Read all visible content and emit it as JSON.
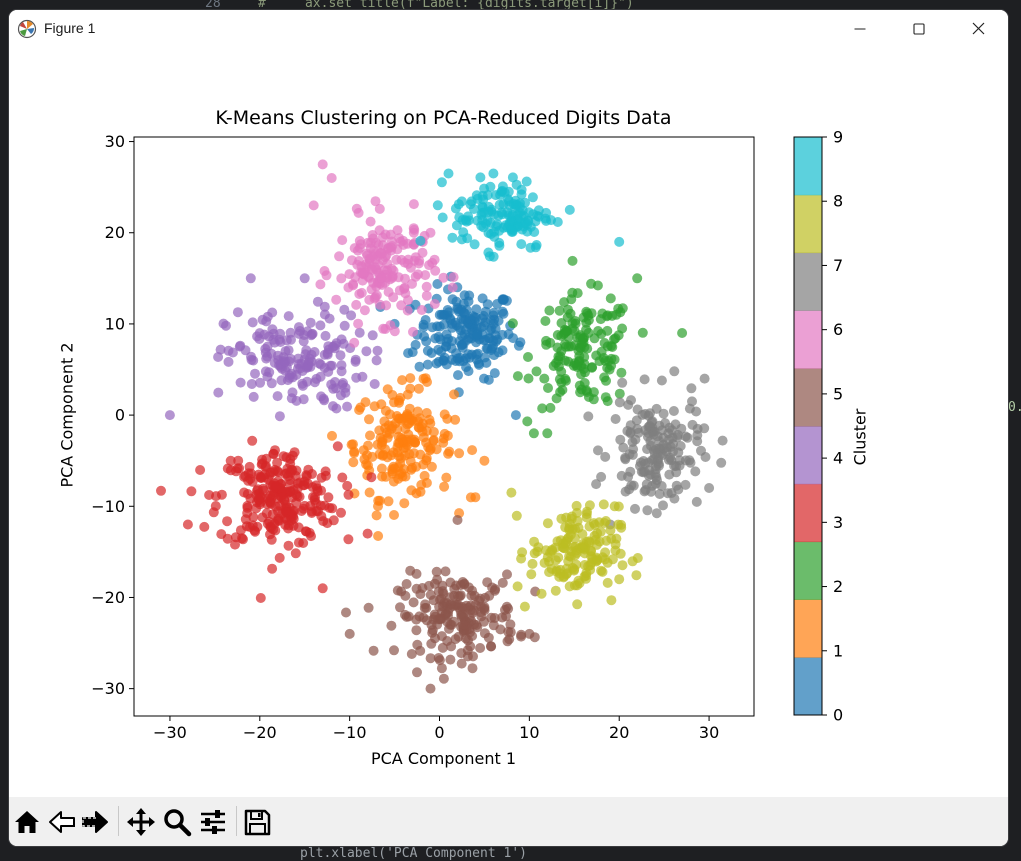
{
  "background": {
    "line_number": "28",
    "code_comment": "#     ax.set_title(f\"Label: {digits.target[i]}\")",
    "side_fragment": "0.",
    "bottom_fragment": "plt.xlabel('PCA Component 1')"
  },
  "window": {
    "title": "Figure 1",
    "icons": {
      "app": "matplotlib-icon",
      "minimize": "minimize-icon",
      "maximize": "maximize-icon",
      "close": "close-icon"
    }
  },
  "toolbar": {
    "buttons": [
      {
        "name": "home-icon"
      },
      {
        "name": "back-arrow-icon"
      },
      {
        "name": "forward-arrow-icon"
      },
      {
        "name": "pan-move-icon"
      },
      {
        "name": "zoom-magnifier-icon"
      },
      {
        "name": "configure-subplots-icon"
      },
      {
        "name": "save-floppy-icon"
      }
    ]
  },
  "chart_data": {
    "type": "scatter",
    "title": "K-Means Clustering on PCA-Reduced Digits Data",
    "xlabel": "PCA Component 1",
    "ylabel": "PCA Component 2",
    "xlim": [
      -34,
      35
    ],
    "ylim": [
      -33,
      30.5
    ],
    "xticks": [
      -30,
      -20,
      -10,
      0,
      10,
      20,
      30
    ],
    "yticks": [
      -30,
      -20,
      -10,
      0,
      10,
      20,
      30
    ],
    "grid": false,
    "marker_alpha": 0.7,
    "colorbar": {
      "label": "Cluster",
      "ticks": [
        0,
        1,
        2,
        3,
        4,
        5,
        6,
        7,
        8,
        9
      ],
      "colors": [
        "#1f77b4",
        "#ff7f0e",
        "#2ca02c",
        "#d62728",
        "#9467bd",
        "#8c564b",
        "#e377c2",
        "#7f7f7f",
        "#bcbd22",
        "#17becf"
      ]
    },
    "clusters": [
      {
        "label": 0,
        "color": "#1f77b4",
        "center": [
          3,
          9
        ],
        "spread": [
          5,
          4.5
        ],
        "n": 180,
        "extremes": [
          [
            -3.5,
            6.8
          ],
          [
            8.5,
            0
          ],
          [
            9,
            8
          ],
          [
            -5,
            10
          ]
        ]
      },
      {
        "label": 1,
        "color": "#ff7f0e",
        "center": [
          -4,
          -3
        ],
        "spread": [
          5,
          5.5
        ],
        "n": 180,
        "extremes": [
          [
            -9.5,
            -4
          ],
          [
            4,
            -9
          ],
          [
            -7,
            -11
          ],
          [
            5,
            -5
          ]
        ]
      },
      {
        "label": 2,
        "color": "#2ca02c",
        "center": [
          16,
          7
        ],
        "spread": [
          5,
          5.5
        ],
        "n": 150,
        "extremes": [
          [
            27,
            9
          ],
          [
            10.5,
            -2
          ],
          [
            22,
            15
          ],
          [
            12,
            -2
          ]
        ]
      },
      {
        "label": 3,
        "color": "#d62728",
        "center": [
          -18,
          -9
        ],
        "spread": [
          6,
          5
        ],
        "n": 240,
        "extremes": [
          [
            -31,
            -8.3
          ],
          [
            -13,
            -19
          ],
          [
            -28,
            -12
          ],
          [
            -8,
            -13
          ]
        ]
      },
      {
        "label": 4,
        "color": "#9467bd",
        "center": [
          -16,
          6
        ],
        "spread": [
          7,
          5
        ],
        "n": 170,
        "extremes": [
          [
            -30,
            0
          ],
          [
            -15,
            15
          ],
          [
            -21,
            15
          ],
          [
            -7,
            6
          ]
        ]
      },
      {
        "label": 5,
        "color": "#8c564b",
        "center": [
          2,
          -22
        ],
        "spread": [
          6,
          4
        ],
        "n": 190,
        "extremes": [
          [
            -1,
            -30
          ],
          [
            -10,
            -24
          ],
          [
            10,
            -24
          ],
          [
            2,
            -11.5
          ]
        ]
      },
      {
        "label": 6,
        "color": "#e377c2",
        "center": [
          -6,
          16
        ],
        "spread": [
          5,
          5
        ],
        "n": 170,
        "extremes": [
          [
            -13,
            27.5
          ],
          [
            -14,
            23
          ],
          [
            -12,
            26
          ],
          [
            -1,
            20
          ]
        ]
      },
      {
        "label": 7,
        "color": "#7f7f7f",
        "center": [
          24,
          -4
        ],
        "spread": [
          4.5,
          5.5
        ],
        "n": 160,
        "extremes": [
          [
            31.5,
            -2.8
          ],
          [
            29.5,
            4
          ],
          [
            30,
            -8
          ],
          [
            19,
            -12
          ]
        ]
      },
      {
        "label": 8,
        "color": "#bcbd22",
        "center": [
          15,
          -15
        ],
        "spread": [
          4.5,
          4.5
        ],
        "n": 150,
        "extremes": [
          [
            9.5,
            -21
          ],
          [
            20,
            -18
          ],
          [
            8,
            -8.5
          ],
          [
            19.5,
            -10
          ]
        ]
      },
      {
        "label": 9,
        "color": "#17becf",
        "center": [
          7,
          22
        ],
        "spread": [
          5,
          3.5
        ],
        "n": 140,
        "extremes": [
          [
            1,
            26.5
          ],
          [
            14.5,
            22.5
          ],
          [
            20,
            19
          ],
          [
            6,
            26.5
          ]
        ]
      }
    ]
  }
}
